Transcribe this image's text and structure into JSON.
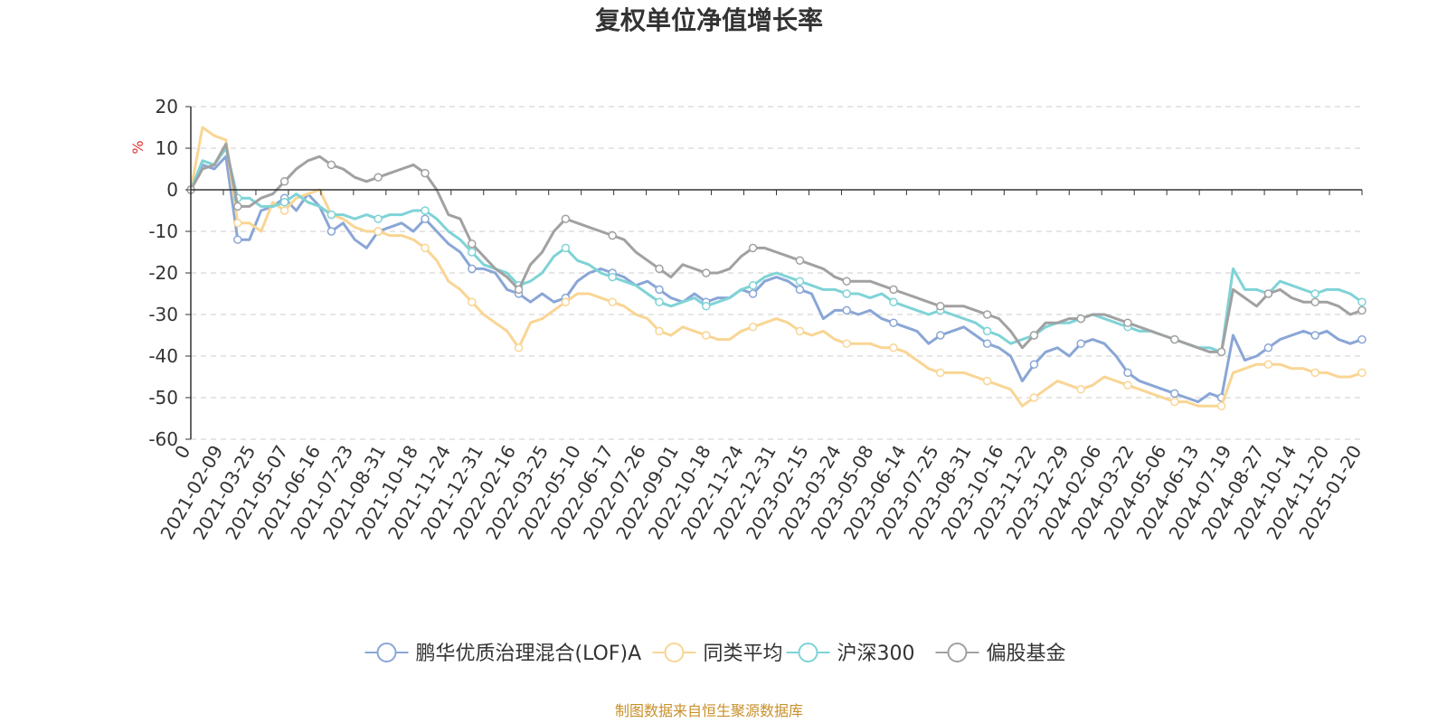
{
  "chart_data": {
    "type": "line",
    "title": "复权单位净值增长率",
    "ylabel": "%",
    "xlabel": "",
    "ylim": [
      -60,
      20
    ],
    "yticks": [
      20,
      10,
      0,
      -10,
      -20,
      -30,
      -40,
      -50,
      -60
    ],
    "x_tick_labels": [
      "0",
      "2021-02-09",
      "2021-03-25",
      "2021-05-07",
      "2021-06-16",
      "2021-07-23",
      "2021-08-31",
      "2021-10-18",
      "2021-11-24",
      "2021-12-31",
      "2022-02-16",
      "2022-03-25",
      "2022-05-10",
      "2022-06-17",
      "2022-07-26",
      "2022-09-01",
      "2022-10-18",
      "2022-11-24",
      "2022-12-31",
      "2023-02-15",
      "2023-03-24",
      "2023-05-08",
      "2023-06-14",
      "2023-07-25",
      "2023-08-31",
      "2023-10-16",
      "2023-11-22",
      "2023-12-29",
      "2024-02-06",
      "2024-03-22",
      "2024-05-06",
      "2024-06-13",
      "2024-07-19",
      "2024-08-27",
      "2024-10-14",
      "2024-11-20",
      "2025-01-20"
    ],
    "grid": true,
    "legend_position": "bottom",
    "source": "制图数据来自恒生聚源数据库",
    "series": [
      {
        "name": "鹏华优质治理混合(LOF)A",
        "color": "#8aa6d6",
        "values": [
          0,
          6,
          5,
          8,
          -12,
          -12,
          -5,
          -4,
          -2,
          -5,
          -1,
          -4,
          -10,
          -8,
          -12,
          -14,
          -10,
          -9,
          -8,
          -10,
          -7,
          -10,
          -13,
          -15,
          -19,
          -19,
          -20,
          -24,
          -25,
          -27,
          -25,
          -27,
          -26,
          -22,
          -20,
          -19,
          -20,
          -21,
          -23,
          -22,
          -24,
          -26,
          -27,
          -25,
          -27,
          -26,
          -26,
          -24,
          -25,
          -22,
          -21,
          -22,
          -24,
          -25,
          -31,
          -29,
          -29,
          -30,
          -29,
          -31,
          -32,
          -33,
          -34,
          -37,
          -35,
          -34,
          -33,
          -35,
          -37,
          -38,
          -40,
          -46,
          -42,
          -39,
          -38,
          -40,
          -37,
          -36,
          -37,
          -40,
          -44,
          -46,
          -47,
          -48,
          -49,
          -50,
          -51,
          -49,
          -50,
          -35,
          -41,
          -40,
          -38,
          -36,
          -35,
          -34,
          -35,
          -34,
          -36,
          -37,
          -36
        ]
      },
      {
        "name": "同类平均",
        "color": "#f9d594",
        "values": [
          0,
          15,
          13,
          12,
          -8,
          -8,
          -10,
          -3,
          -5,
          -2,
          -1,
          0,
          -6,
          -7,
          -9,
          -10,
          -10,
          -11,
          -11,
          -12,
          -14,
          -17,
          -22,
          -24,
          -27,
          -30,
          -32,
          -34,
          -38,
          -32,
          -31,
          -29,
          -27,
          -25,
          -25,
          -26,
          -27,
          -28,
          -30,
          -31,
          -34,
          -35,
          -33,
          -34,
          -35,
          -36,
          -36,
          -34,
          -33,
          -32,
          -31,
          -32,
          -34,
          -35,
          -34,
          -36,
          -37,
          -37,
          -37,
          -38,
          -38,
          -39,
          -41,
          -43,
          -44,
          -44,
          -44,
          -45,
          -46,
          -47,
          -48,
          -52,
          -50,
          -48,
          -46,
          -47,
          -48,
          -47,
          -45,
          -46,
          -47,
          -48,
          -49,
          -50,
          -51,
          -51,
          -52,
          -52,
          -52,
          -44,
          -43,
          -42,
          -42,
          -42,
          -43,
          -43,
          -44,
          -44,
          -45,
          -45,
          -44
        ]
      },
      {
        "name": "沪深300",
        "color": "#7fd3d6",
        "values": [
          0,
          7,
          6,
          10,
          -2,
          -2,
          -4,
          -4,
          -3,
          -1,
          -3,
          -4,
          -6,
          -6,
          -7,
          -6,
          -7,
          -6,
          -6,
          -5,
          -5,
          -7,
          -10,
          -12,
          -15,
          -18,
          -19,
          -20,
          -23,
          -22,
          -20,
          -16,
          -14,
          -17,
          -18,
          -20,
          -21,
          -22,
          -23,
          -25,
          -27,
          -28,
          -27,
          -26,
          -28,
          -27,
          -26,
          -24,
          -23,
          -21,
          -20,
          -21,
          -22,
          -23,
          -24,
          -24,
          -25,
          -25,
          -26,
          -25,
          -27,
          -28,
          -29,
          -30,
          -29,
          -30,
          -31,
          -32,
          -34,
          -35,
          -37,
          -36,
          -35,
          -33,
          -32,
          -32,
          -31,
          -30,
          -31,
          -32,
          -33,
          -34,
          -34,
          -35,
          -36,
          -37,
          -38,
          -38,
          -39,
          -19,
          -24,
          -24,
          -25,
          -22,
          -23,
          -24,
          -25,
          -24,
          -24,
          -25,
          -27
        ]
      },
      {
        "name": "偏股基金",
        "color": "#a1a1a1",
        "values": [
          0,
          5,
          6,
          11,
          -4,
          -4,
          -2,
          -1,
          2,
          5,
          7,
          8,
          6,
          5,
          3,
          2,
          3,
          4,
          5,
          6,
          4,
          0,
          -6,
          -7,
          -13,
          -16,
          -19,
          -21,
          -24,
          -18,
          -15,
          -10,
          -7,
          -8,
          -9,
          -10,
          -11,
          -12,
          -15,
          -17,
          -19,
          -21,
          -18,
          -19,
          -20,
          -20,
          -19,
          -16,
          -14,
          -14,
          -15,
          -16,
          -17,
          -18,
          -19,
          -21,
          -22,
          -22,
          -22,
          -23,
          -24,
          -25,
          -26,
          -27,
          -28,
          -28,
          -28,
          -29,
          -30,
          -31,
          -34,
          -38,
          -35,
          -32,
          -32,
          -31,
          -31,
          -30,
          -30,
          -31,
          -32,
          -33,
          -34,
          -35,
          -36,
          -37,
          -38,
          -39,
          -39,
          -24,
          -26,
          -28,
          -25,
          -24,
          -26,
          -27,
          -27,
          -27,
          -28,
          -30,
          -29
        ]
      }
    ]
  }
}
